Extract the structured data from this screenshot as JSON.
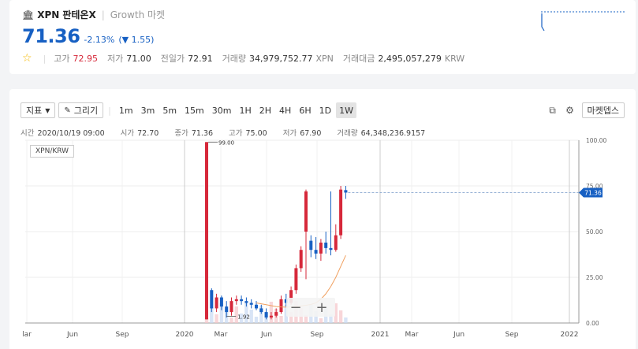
{
  "ticker": {
    "symbol": "XPN",
    "name": "판테온X",
    "market": "Growth 마켓",
    "price": "71.36",
    "change_pct": "-2.13%",
    "change_abs": "1.55",
    "high_label": "고가",
    "high": "72.95",
    "low_label": "저가",
    "low": "71.00",
    "prev_label": "전일가",
    "prev": "72.91",
    "volume_label": "거래량",
    "volume": "34,979,752.77",
    "volume_unit": "XPN",
    "amount_label": "거래대금",
    "amount": "2,495,057,279",
    "amount_unit": "KRW"
  },
  "toolbar": {
    "indicator_label": "지표",
    "draw_label": "그리기",
    "intervals": [
      "1m",
      "3m",
      "5m",
      "15m",
      "30m",
      "1H",
      "2H",
      "4H",
      "6H",
      "1D",
      "1W"
    ],
    "active_interval": "1W",
    "depth_label": "마켓뎁스"
  },
  "ohlc": {
    "time_label": "시간",
    "time": "2020/10/19 09:00",
    "open_label": "시가",
    "open": "72.70",
    "close_label": "종가",
    "close": "71.36",
    "high_label": "고가",
    "high": "75.00",
    "low_label": "저가",
    "low": "67.90",
    "vol_label": "거래량",
    "vol": "64,348,236.9157"
  },
  "pair": "XPN/KRW",
  "colors": {
    "up": "#d6283a",
    "down": "#1760c3",
    "ma": "#f0a060"
  },
  "chart_data": {
    "type": "candlestick",
    "y_ticks": [
      "100.00",
      "75.00",
      "50.00",
      "25.00",
      "0.00"
    ],
    "ylim": [
      0,
      100
    ],
    "x_ticks": [
      "lar",
      "Jun",
      "Sep",
      "2020",
      "Mar",
      "Jun",
      "Sep",
      "2021",
      "Mar",
      "Jun",
      "Sep",
      "2022"
    ],
    "last_price_label": "71.36",
    "max_label": "99.00",
    "min_label": "1.92",
    "candles": [
      {
        "o": 2,
        "c": 99,
        "h": 99,
        "l": 1.92
      },
      {
        "o": 18,
        "c": 8,
        "h": 19,
        "l": 6
      },
      {
        "o": 8,
        "c": 14,
        "h": 16,
        "l": 6
      },
      {
        "o": 14,
        "c": 9,
        "h": 15,
        "l": 7
      },
      {
        "o": 9,
        "c": 6,
        "h": 12,
        "l": 3
      },
      {
        "o": 6,
        "c": 12,
        "h": 14,
        "l": 4
      },
      {
        "o": 12,
        "c": 13,
        "h": 15,
        "l": 10
      },
      {
        "o": 13,
        "c": 12,
        "h": 15,
        "l": 10
      },
      {
        "o": 12,
        "c": 11,
        "h": 14,
        "l": 9
      },
      {
        "o": 11,
        "c": 10,
        "h": 13,
        "l": 8
      },
      {
        "o": 10,
        "c": 8,
        "h": 12,
        "l": 7
      },
      {
        "o": 8,
        "c": 6,
        "h": 10,
        "l": 5
      },
      {
        "o": 6,
        "c": 3,
        "h": 8,
        "l": 2
      },
      {
        "o": 3,
        "c": 4,
        "h": 6,
        "l": 2
      },
      {
        "o": 4,
        "c": 6,
        "h": 8,
        "l": 3
      },
      {
        "o": 6,
        "c": 13,
        "h": 15,
        "l": 5
      },
      {
        "o": 13,
        "c": 11,
        "h": 16,
        "l": 9
      },
      {
        "o": 11,
        "c": 18,
        "h": 20,
        "l": 10
      },
      {
        "o": 18,
        "c": 30,
        "h": 32,
        "l": 16
      },
      {
        "o": 30,
        "c": 40,
        "h": 42,
        "l": 28
      },
      {
        "o": 50,
        "c": 72,
        "h": 73,
        "l": 24
      },
      {
        "o": 45,
        "c": 40,
        "h": 48,
        "l": 36
      },
      {
        "o": 40,
        "c": 38,
        "h": 47,
        "l": 35
      },
      {
        "o": 38,
        "c": 44,
        "h": 46,
        "l": 34
      },
      {
        "o": 44,
        "c": 41,
        "h": 50,
        "l": 38
      },
      {
        "o": 41,
        "c": 40,
        "h": 72,
        "l": 37
      },
      {
        "o": 40,
        "c": 48,
        "h": 54,
        "l": 39
      },
      {
        "o": 48,
        "c": 73,
        "h": 75,
        "l": 46
      },
      {
        "o": 72.7,
        "c": 71.36,
        "h": 75,
        "l": 67.9
      }
    ]
  }
}
